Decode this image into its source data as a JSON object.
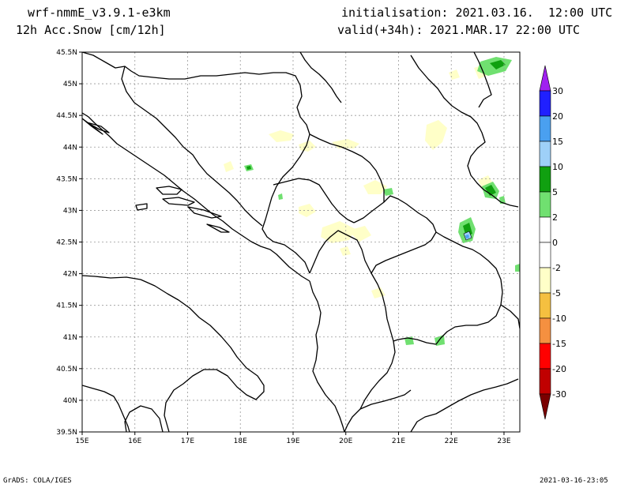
{
  "header": {
    "model": "wrf-nmmE_v3.9.1-e3km",
    "variable": "12h Acc.Snow [cm/12h]",
    "init": "initialisation: 2021.03.16.  12:00 UTC",
    "valid": "valid(+34h): 2021.MAR.17 22:00 UTC"
  },
  "footer": {
    "credit": "GrADS: COLA/IGES",
    "timestamp": "2021-03-16-23:05"
  },
  "map": {
    "lon_range": [
      15,
      23.3
    ],
    "lat_range": [
      39.5,
      45.5
    ],
    "lon_ticks": [
      {
        "v": 15,
        "label": "15E"
      },
      {
        "v": 16,
        "label": "16E"
      },
      {
        "v": 17,
        "label": "17E"
      },
      {
        "v": 18,
        "label": "18E"
      },
      {
        "v": 19,
        "label": "19E"
      },
      {
        "v": 20,
        "label": "20E"
      },
      {
        "v": 21,
        "label": "21E"
      },
      {
        "v": 22,
        "label": "22E"
      },
      {
        "v": 23,
        "label": "23E"
      }
    ],
    "lat_ticks": [
      {
        "v": 39.5,
        "label": "39.5N"
      },
      {
        "v": 40,
        "label": "40N"
      },
      {
        "v": 40.5,
        "label": "40.5N"
      },
      {
        "v": 41,
        "label": "41N"
      },
      {
        "v": 41.5,
        "label": "41.5N"
      },
      {
        "v": 42,
        "label": "42N"
      },
      {
        "v": 42.5,
        "label": "42.5N"
      },
      {
        "v": 43,
        "label": "43N"
      },
      {
        "v": 43.5,
        "label": "43.5N"
      },
      {
        "v": 44,
        "label": "44N"
      },
      {
        "v": 44.5,
        "label": "44.5N"
      },
      {
        "v": 45,
        "label": "45N"
      },
      {
        "v": 45.5,
        "label": "45.5N"
      }
    ],
    "grid": true
  },
  "colorbar": {
    "top_color": "#a020f0",
    "bottom_color": "#7a0000",
    "bins": [
      {
        "color": "#2020ff",
        "label": "30"
      },
      {
        "color": "#4aa0f0",
        "label": "20"
      },
      {
        "color": "#9ed0f8",
        "label": "15"
      },
      {
        "color": "#10a010",
        "label": "10"
      },
      {
        "color": "#70e070",
        "label": "5"
      },
      {
        "color": "#ffffff",
        "label": "2"
      },
      {
        "color": "#ffffff",
        "label": "0"
      },
      {
        "color": "#ffffc8",
        "label": "-2"
      },
      {
        "color": "#f5c040",
        "label": "-5"
      },
      {
        "color": "#f59040",
        "label": "-10"
      },
      {
        "color": "#ff0000",
        "label": "-15"
      },
      {
        "color": "#c00000",
        "label": "-20"
      },
      {
        "color": "#9a0000",
        "label": "-30"
      }
    ]
  },
  "snow_colors": {
    "light": "#ffffc8",
    "green_light": "#70e070",
    "green_dark": "#10a010",
    "blue_light": "#9ed0f8",
    "blue": "#4aa0f0"
  }
}
